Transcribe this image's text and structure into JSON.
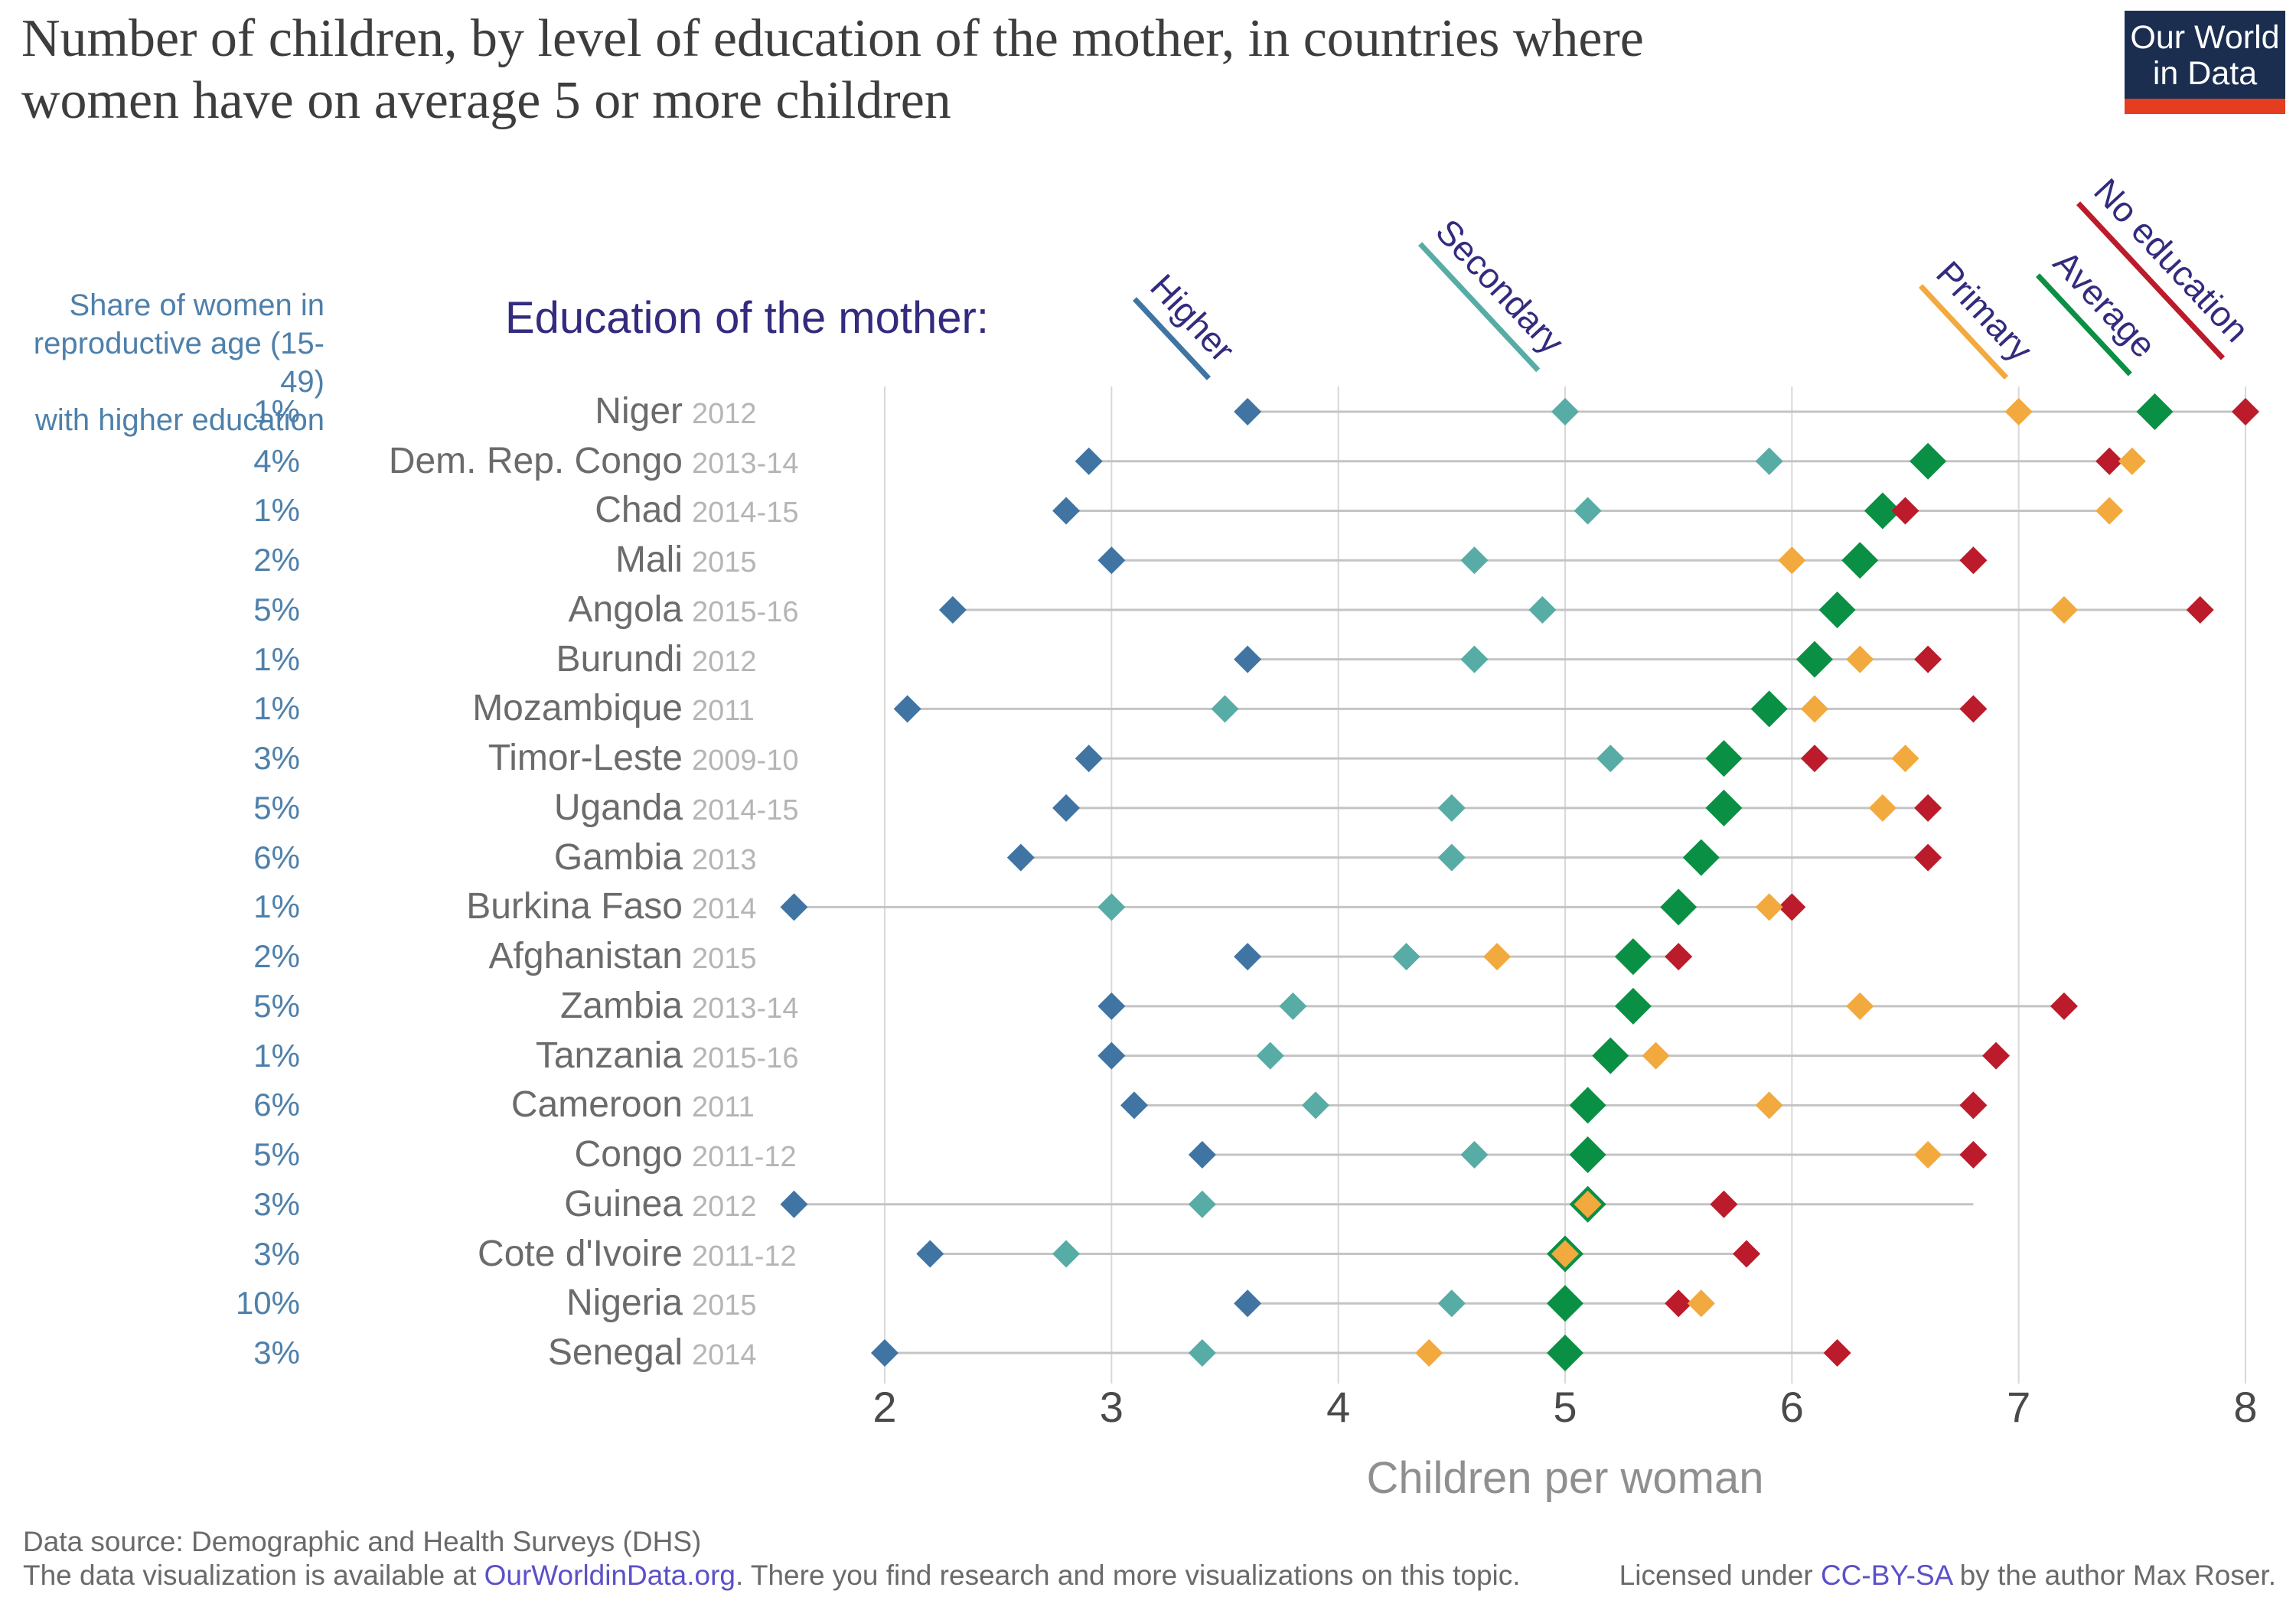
{
  "title": {
    "line1": "Number of children, by level of education of the mother, in countries where",
    "line2": "women have on average 5 or more children"
  },
  "logo": {
    "line1": "Our World",
    "line2": "in Data",
    "bg_color": "#1b2e50",
    "bar_color": "#e43d1f"
  },
  "left_header": {
    "line1": "Share of women in",
    "line2": "reproductive age (15-49)",
    "line3": "with higher education"
  },
  "legend": {
    "heading": "Education of the mother:",
    "items": [
      {
        "key": "higher",
        "label": "Higher",
        "color": "#3f74a3"
      },
      {
        "key": "secondary",
        "label": "Secondary",
        "color": "#57aca5"
      },
      {
        "key": "primary",
        "label": "Primary",
        "color": "#f2a93d"
      },
      {
        "key": "average",
        "label": "Average",
        "color": "#0a9044"
      },
      {
        "key": "no_education",
        "label": "No education",
        "color": "#bb1b2a"
      }
    ]
  },
  "chart_data": {
    "type": "scatter",
    "title": "Number of children, by level of education of the mother, in countries where women have on average 5 or more children",
    "xlabel": "Children per woman",
    "xlim": [
      2,
      8
    ],
    "x_ticks": [
      "2",
      "3",
      "4",
      "5",
      "6",
      "7",
      "8"
    ],
    "grid": true,
    "series_colors": {
      "higher": "#3f74a3",
      "secondary": "#57aca5",
      "primary": "#f2a93d",
      "average": "#0a9044",
      "no_education": "#bb1b2a"
    },
    "rows": [
      {
        "country": "Niger",
        "year": "2012",
        "share": "1%",
        "higher": 3.6,
        "secondary": 5.0,
        "primary": 7.0,
        "average": 7.6,
        "no_education": 8.0
      },
      {
        "country": "Dem. Rep. Congo",
        "year": "2013-14",
        "share": "4%",
        "higher": 2.9,
        "secondary": 5.9,
        "primary": 7.5,
        "average": 6.6,
        "no_education": 7.4
      },
      {
        "country": "Chad",
        "year": "2014-15",
        "share": "1%",
        "higher": 2.8,
        "secondary": 5.1,
        "primary": 7.4,
        "average": 6.4,
        "no_education": 6.5
      },
      {
        "country": "Mali",
        "year": "2015",
        "share": "2%",
        "higher": 3.0,
        "secondary": 4.6,
        "primary": 6.0,
        "average": 6.3,
        "no_education": 6.8
      },
      {
        "country": "Angola",
        "year": "2015-16",
        "share": "5%",
        "higher": 2.3,
        "secondary": 4.9,
        "primary": 7.2,
        "average": 6.2,
        "no_education": 7.8
      },
      {
        "country": "Burundi",
        "year": "2012",
        "share": "1%",
        "higher": 3.6,
        "secondary": 4.6,
        "primary": 6.3,
        "average": 6.1,
        "no_education": 6.6
      },
      {
        "country": "Mozambique",
        "year": "2011",
        "share": "1%",
        "higher": 2.1,
        "secondary": 3.5,
        "primary": 6.1,
        "average": 5.9,
        "no_education": 6.8
      },
      {
        "country": "Timor-Leste",
        "year": "2009-10",
        "share": "3%",
        "higher": 2.9,
        "secondary": 5.2,
        "primary": 6.5,
        "average": 5.7,
        "no_education": 6.1
      },
      {
        "country": "Uganda",
        "year": "2014-15",
        "share": "5%",
        "higher": 2.8,
        "secondary": 4.5,
        "primary": 6.4,
        "average": 5.7,
        "no_education": 6.6
      },
      {
        "country": "Gambia",
        "year": "2013",
        "share": "6%",
        "higher": 2.6,
        "secondary": 4.5,
        "primary": 5.6,
        "average": 5.6,
        "no_education": 6.6,
        "primary_hidden": true
      },
      {
        "country": "Burkina Faso",
        "year": "2014",
        "share": "1%",
        "higher": 1.6,
        "secondary": 3.0,
        "primary": 5.9,
        "average": 5.5,
        "no_education": 6.0
      },
      {
        "country": "Afghanistan",
        "year": "2015",
        "share": "2%",
        "higher": 3.6,
        "secondary": 4.3,
        "primary": 4.7,
        "average": 5.3,
        "no_education": 5.5
      },
      {
        "country": "Zambia",
        "year": "2013-14",
        "share": "5%",
        "higher": 3.0,
        "secondary": 3.8,
        "primary": 6.3,
        "average": 5.3,
        "no_education": 7.2
      },
      {
        "country": "Tanzania",
        "year": "2015-16",
        "share": "1%",
        "higher": 3.0,
        "secondary": 3.7,
        "primary": 5.4,
        "average": 5.2,
        "no_education": 6.9
      },
      {
        "country": "Cameroon",
        "year": "2011",
        "share": "6%",
        "higher": 3.1,
        "secondary": 3.9,
        "primary": 5.9,
        "average": 5.1,
        "no_education": 6.8
      },
      {
        "country": "Congo",
        "year": "2011-12",
        "share": "5%",
        "higher": 3.4,
        "secondary": 4.6,
        "primary": 6.6,
        "average": 5.1,
        "no_education": 6.8
      },
      {
        "country": "Guinea",
        "year": "2012",
        "share": "3%",
        "higher": 1.6,
        "secondary": 3.4,
        "primary": 5.1,
        "average": 5.1,
        "no_education": 5.7,
        "line_max": 6.8
      },
      {
        "country": "Cote d'Ivoire",
        "year": "2011-12",
        "share": "3%",
        "higher": 2.2,
        "secondary": 2.8,
        "primary": 5.0,
        "average": 5.0,
        "no_education": 5.8
      },
      {
        "country": "Nigeria",
        "year": "2015",
        "share": "10%",
        "higher": 3.6,
        "secondary": 4.5,
        "primary": 5.6,
        "average": 5.0,
        "no_education": 5.5
      },
      {
        "country": "Senegal",
        "year": "2014",
        "share": "3%",
        "higher": 2.0,
        "secondary": 3.4,
        "primary": 4.4,
        "average": 5.0,
        "no_education": 6.2
      }
    ]
  },
  "footer": {
    "line1": "Data source: Demographic and Health Surveys (DHS)",
    "line2_pre": "The data visualization is available at ",
    "line2_link": "OurWorldinData.org",
    "line2_post": ". There you find research and more visualizations on this topic.",
    "license_pre": "Licensed under ",
    "license_link": "CC-BY-SA",
    "license_post": " by the author Max Roser."
  }
}
